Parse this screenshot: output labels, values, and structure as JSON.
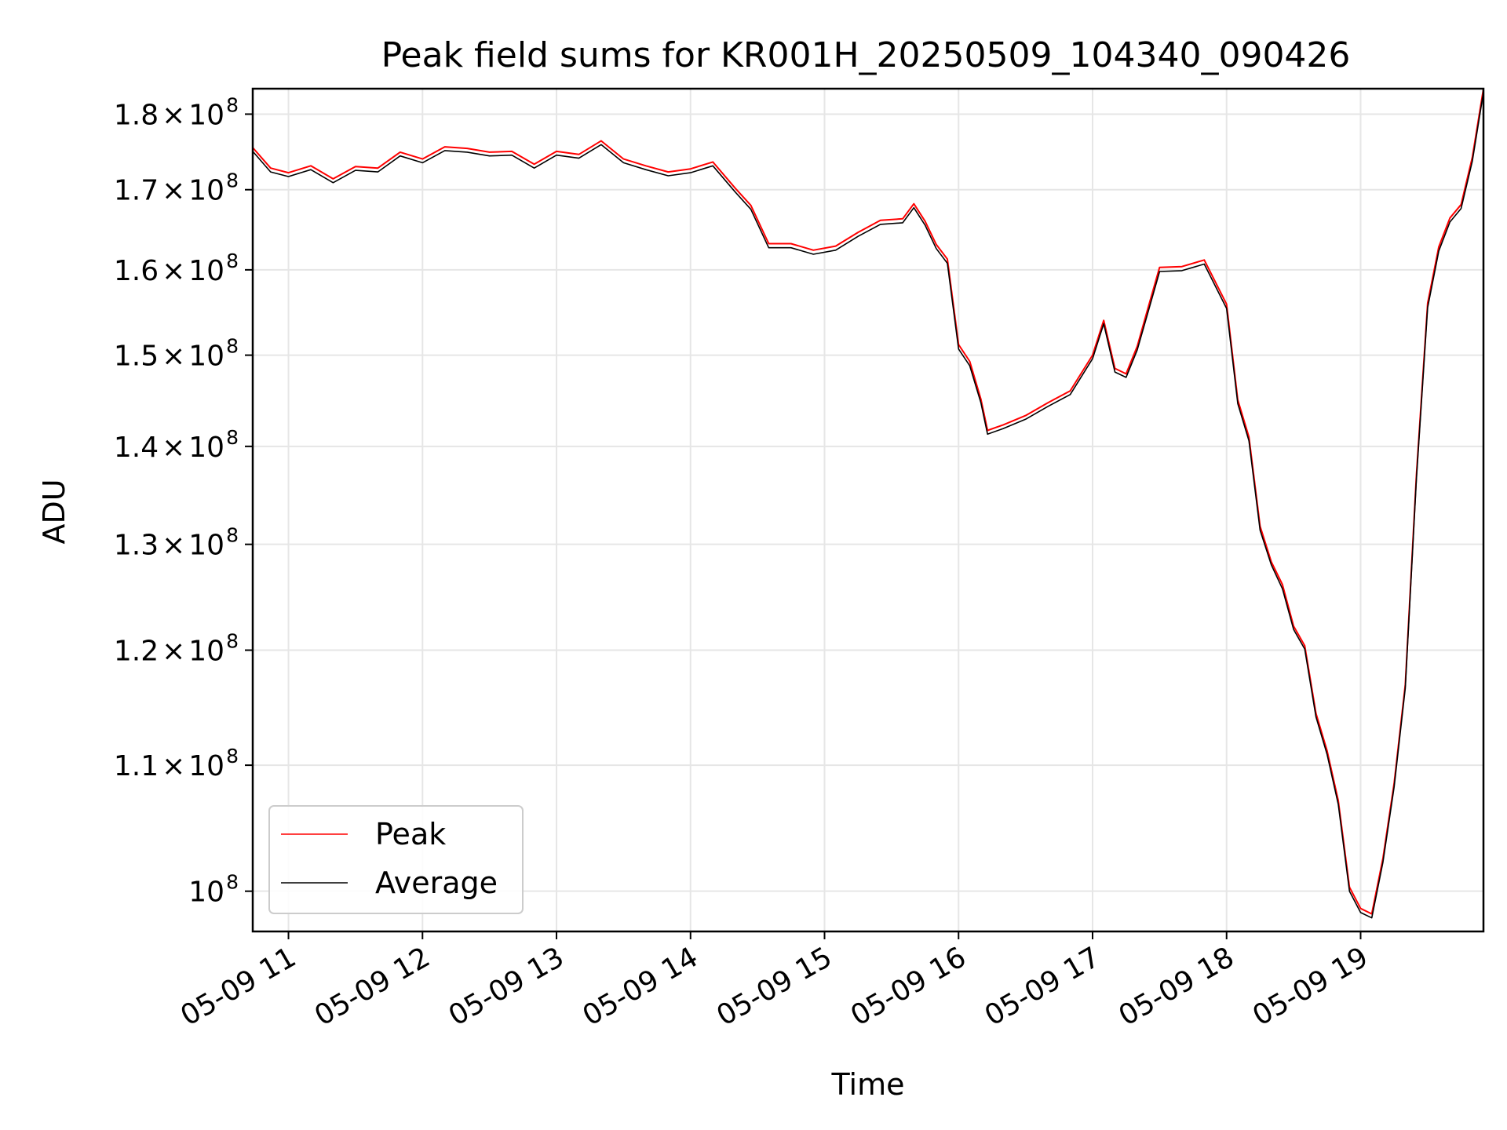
{
  "chart_data": {
    "type": "line",
    "title": "Peak field sums for KR001H_20250509_104340_090426",
    "xlabel": "Time",
    "ylabel": "ADU",
    "y_scale": "log",
    "grid": true,
    "legend_position": "lower-left",
    "xlim": [
      "2025-05-09 10:44",
      "2025-05-09 19:55"
    ],
    "ylim": [
      97000000,
      183500000
    ],
    "x_ticks": [
      {
        "value": "2025-05-09 11:00",
        "label": "05-09 11"
      },
      {
        "value": "2025-05-09 12:00",
        "label": "05-09 12"
      },
      {
        "value": "2025-05-09 13:00",
        "label": "05-09 13"
      },
      {
        "value": "2025-05-09 14:00",
        "label": "05-09 14"
      },
      {
        "value": "2025-05-09 15:00",
        "label": "05-09 15"
      },
      {
        "value": "2025-05-09 16:00",
        "label": "05-09 16"
      },
      {
        "value": "2025-05-09 17:00",
        "label": "05-09 17"
      },
      {
        "value": "2025-05-09 18:00",
        "label": "05-09 18"
      },
      {
        "value": "2025-05-09 19:00",
        "label": "05-09 19"
      }
    ],
    "y_ticks": [
      {
        "value": 100000000,
        "mantissa": "",
        "base": "10",
        "exponent": "8"
      },
      {
        "value": 110000000,
        "mantissa": "1.1",
        "base": "10",
        "exponent": "8"
      },
      {
        "value": 120000000,
        "mantissa": "1.2",
        "base": "10",
        "exponent": "8"
      },
      {
        "value": 130000000,
        "mantissa": "1.3",
        "base": "10",
        "exponent": "8"
      },
      {
        "value": 140000000,
        "mantissa": "1.4",
        "base": "10",
        "exponent": "8"
      },
      {
        "value": 150000000,
        "mantissa": "1.5",
        "base": "10",
        "exponent": "8"
      },
      {
        "value": 160000000,
        "mantissa": "1.6",
        "base": "10",
        "exponent": "8"
      },
      {
        "value": 170000000,
        "mantissa": "1.7",
        "base": "10",
        "exponent": "8"
      },
      {
        "value": 180000000,
        "mantissa": "1.8",
        "base": "10",
        "exponent": "8"
      }
    ],
    "x": [
      "2025-05-09 10:44",
      "2025-05-09 10:52",
      "2025-05-09 11:00",
      "2025-05-09 11:10",
      "2025-05-09 11:20",
      "2025-05-09 11:30",
      "2025-05-09 11:40",
      "2025-05-09 11:50",
      "2025-05-09 12:00",
      "2025-05-09 12:10",
      "2025-05-09 12:20",
      "2025-05-09 12:30",
      "2025-05-09 12:40",
      "2025-05-09 12:50",
      "2025-05-09 13:00",
      "2025-05-09 13:10",
      "2025-05-09 13:20",
      "2025-05-09 13:30",
      "2025-05-09 13:40",
      "2025-05-09 13:50",
      "2025-05-09 14:00",
      "2025-05-09 14:10",
      "2025-05-09 14:20",
      "2025-05-09 14:27",
      "2025-05-09 14:35",
      "2025-05-09 14:45",
      "2025-05-09 14:55",
      "2025-05-09 15:05",
      "2025-05-09 15:15",
      "2025-05-09 15:25",
      "2025-05-09 15:35",
      "2025-05-09 15:40",
      "2025-05-09 15:45",
      "2025-05-09 15:50",
      "2025-05-09 15:55",
      "2025-05-09 16:00",
      "2025-05-09 16:05",
      "2025-05-09 16:10",
      "2025-05-09 16:13",
      "2025-05-09 16:20",
      "2025-05-09 16:30",
      "2025-05-09 16:40",
      "2025-05-09 16:50",
      "2025-05-09 17:00",
      "2025-05-09 17:05",
      "2025-05-09 17:10",
      "2025-05-09 17:15",
      "2025-05-09 17:20",
      "2025-05-09 17:25",
      "2025-05-09 17:30",
      "2025-05-09 17:40",
      "2025-05-09 17:50",
      "2025-05-09 18:00",
      "2025-05-09 18:05",
      "2025-05-09 18:10",
      "2025-05-09 18:15",
      "2025-05-09 18:20",
      "2025-05-09 18:25",
      "2025-05-09 18:30",
      "2025-05-09 18:35",
      "2025-05-09 18:40",
      "2025-05-09 18:45",
      "2025-05-09 18:50",
      "2025-05-09 18:55",
      "2025-05-09 19:00",
      "2025-05-09 19:05",
      "2025-05-09 19:10",
      "2025-05-09 19:15",
      "2025-05-09 19:20",
      "2025-05-09 19:25",
      "2025-05-09 19:30",
      "2025-05-09 19:35",
      "2025-05-09 19:40",
      "2025-05-09 19:45",
      "2025-05-09 19:50",
      "2025-05-09 19:55"
    ],
    "series": [
      {
        "name": "Peak",
        "color": "#ff0000",
        "values": [
          175500000,
          172800000,
          172200000,
          173100000,
          171400000,
          173000000,
          172800000,
          174900000,
          174000000,
          175600000,
          175400000,
          174900000,
          175000000,
          173300000,
          175000000,
          174600000,
          176400000,
          174000000,
          173100000,
          172300000,
          172700000,
          173600000,
          170200000,
          168000000,
          163200000,
          163200000,
          162400000,
          162900000,
          164600000,
          166100000,
          166300000,
          168200000,
          166000000,
          163100000,
          161300000,
          151200000,
          149300000,
          145100000,
          141700000,
          142300000,
          143300000,
          144700000,
          146000000,
          150000000,
          154000000,
          148500000,
          147900000,
          151000000,
          155600000,
          160300000,
          160400000,
          161200000,
          155900000,
          145000000,
          141000000,
          131800000,
          128300000,
          126100000,
          122200000,
          120400000,
          114400000,
          111200000,
          107100000,
          100300000,
          98700000,
          98300000,
          102500000,
          108500000,
          116900000,
          137000000,
          156000000,
          162800000,
          166400000,
          168100000,
          174200000,
          183500000
        ]
      },
      {
        "name": "Average",
        "color": "#000000",
        "values": [
          175000000,
          172300000,
          171700000,
          172600000,
          170900000,
          172500000,
          172300000,
          174400000,
          173500000,
          175100000,
          174900000,
          174400000,
          174500000,
          172800000,
          174500000,
          174100000,
          175900000,
          173500000,
          172600000,
          171800000,
          172200000,
          173100000,
          169700000,
          167500000,
          162700000,
          162700000,
          161900000,
          162400000,
          164100000,
          165600000,
          165800000,
          167700000,
          165500000,
          162600000,
          160800000,
          150700000,
          148800000,
          144700000,
          141300000,
          141900000,
          142900000,
          144300000,
          145600000,
          149600000,
          153600000,
          148100000,
          147500000,
          150600000,
          155100000,
          159800000,
          159900000,
          160700000,
          155400000,
          144600000,
          140600000,
          131400000,
          128000000,
          125700000,
          121900000,
          120100000,
          114100000,
          110900000,
          106800000,
          100000000,
          98400000,
          98000000,
          102200000,
          108200000,
          116600000,
          136600000,
          155500000,
          162300000,
          165900000,
          167600000,
          173700000,
          183000000
        ]
      }
    ]
  }
}
